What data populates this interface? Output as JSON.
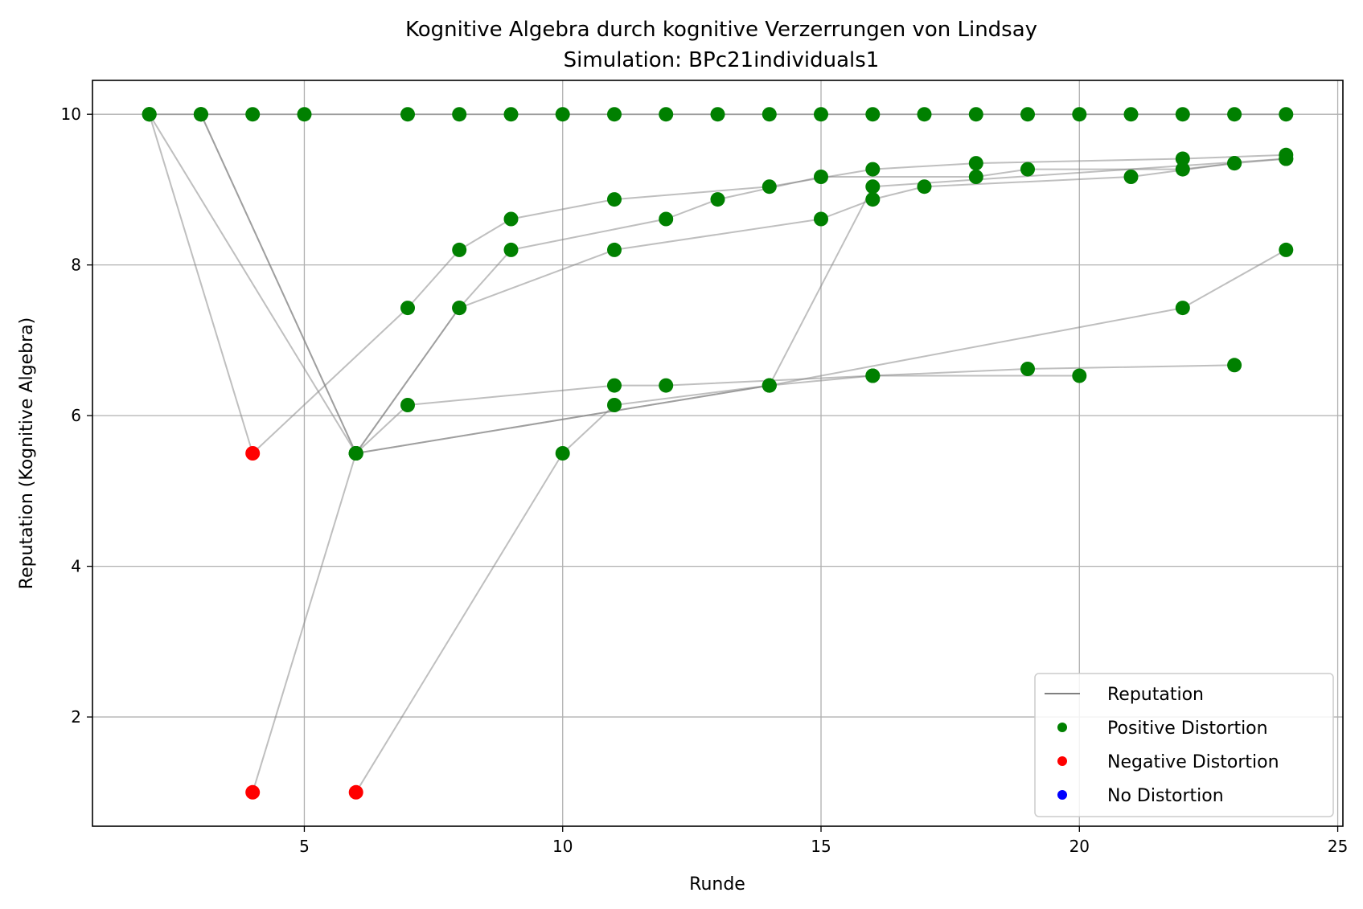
{
  "chart_data": {
    "type": "line",
    "title": "Kognitive Algebra durch kognitive Verzerrungen von Lindsay",
    "subtitle": "Simulation: BPc21individuals1",
    "xlabel": "Runde",
    "ylabel": "Reputation (Kognitive Algebra)",
    "xlim": [
      0.9,
      25.1
    ],
    "ylim": [
      0.55,
      10.45
    ],
    "xticks": [
      5,
      10,
      15,
      20,
      25
    ],
    "yticks": [
      2,
      4,
      6,
      8,
      10
    ],
    "grid": true,
    "legend_position": "lower-right",
    "colors": {
      "line": "#808080",
      "positive": "#008000",
      "negative": "#ff0000",
      "none": "#0000ff",
      "grid": "#b0b0b0"
    },
    "legend": [
      {
        "label": "Reputation",
        "kind": "line",
        "color": "#808080"
      },
      {
        "label": "Positive Distortion",
        "kind": "marker",
        "color": "#008000"
      },
      {
        "label": "Negative Distortion",
        "kind": "marker",
        "color": "#ff0000"
      },
      {
        "label": "No Distortion",
        "kind": "marker",
        "color": "#0000ff"
      }
    ],
    "series": [
      {
        "points": [
          [
            2,
            10
          ],
          [
            3,
            10
          ],
          [
            4,
            10
          ],
          [
            5,
            10
          ],
          [
            7,
            10
          ],
          [
            8,
            10
          ],
          [
            9,
            10
          ],
          [
            10,
            10
          ],
          [
            11,
            10
          ],
          [
            12,
            10
          ],
          [
            13,
            10
          ],
          [
            14,
            10
          ],
          [
            15,
            10
          ],
          [
            16,
            10
          ],
          [
            17,
            10
          ],
          [
            18,
            10
          ],
          [
            19,
            10
          ],
          [
            20,
            10
          ],
          [
            21,
            10
          ],
          [
            22,
            10
          ],
          [
            23,
            10
          ],
          [
            24,
            10
          ]
        ],
        "distortion": [
          "pos",
          "pos",
          "pos",
          "pos",
          "pos",
          "pos",
          "pos",
          "pos",
          "pos",
          "pos",
          "pos",
          "pos",
          "pos",
          "pos",
          "pos",
          "pos",
          "pos",
          "pos",
          "pos",
          "pos",
          "pos",
          "pos"
        ]
      },
      {
        "points": [
          [
            2,
            10
          ],
          [
            4,
            5.5
          ],
          [
            7,
            7.43
          ],
          [
            8,
            8.2
          ],
          [
            9,
            8.61
          ],
          [
            11,
            8.87
          ],
          [
            14,
            9.04
          ],
          [
            16,
            9.27
          ],
          [
            18,
            9.35
          ],
          [
            22,
            9.41
          ],
          [
            24,
            9.46
          ]
        ],
        "distortion": [
          "pos",
          "neg",
          "pos",
          "pos",
          "pos",
          "pos",
          "pos",
          "pos",
          "pos",
          "pos",
          "pos"
        ]
      },
      {
        "points": [
          [
            2,
            10
          ],
          [
            6,
            5.5
          ],
          [
            7,
            6.14
          ],
          [
            11,
            6.4
          ],
          [
            12,
            6.4
          ],
          [
            16,
            6.53
          ],
          [
            19,
            6.62
          ],
          [
            23,
            6.67
          ]
        ],
        "distortion": [
          "pos",
          "pos",
          "pos",
          "pos",
          "pos",
          "pos",
          "pos",
          "pos"
        ]
      },
      {
        "points": [
          [
            3,
            10
          ],
          [
            6,
            5.5
          ],
          [
            8,
            7.43
          ],
          [
            9,
            8.2
          ],
          [
            12,
            8.61
          ],
          [
            13,
            8.87
          ],
          [
            15,
            9.17
          ],
          [
            18,
            9.17
          ],
          [
            19,
            9.27
          ],
          [
            22,
            9.27
          ],
          [
            23,
            9.35
          ],
          [
            24,
            9.41
          ]
        ],
        "distortion": [
          "pos",
          "pos",
          "pos",
          "pos",
          "pos",
          "pos",
          "pos",
          "pos",
          "pos",
          "pos",
          "pos",
          "pos"
        ]
      },
      {
        "points": [
          [
            3,
            10
          ],
          [
            6,
            5.5
          ],
          [
            8,
            7.43
          ],
          [
            11,
            8.2
          ],
          [
            15,
            8.61
          ],
          [
            16,
            8.87
          ],
          [
            17,
            9.04
          ],
          [
            21,
            9.17
          ],
          [
            23,
            9.35
          ]
        ],
        "distortion": [
          "pos",
          "pos",
          "pos",
          "pos",
          "pos",
          "pos",
          "pos",
          "pos",
          "pos"
        ]
      },
      {
        "points": [
          [
            4,
            1
          ],
          [
            6,
            5.5
          ],
          [
            14,
            6.4
          ],
          [
            16,
            6.53
          ],
          [
            20,
            6.53
          ]
        ],
        "distortion": [
          "neg",
          "pos",
          "pos",
          "pos",
          "pos"
        ]
      },
      {
        "points": [
          [
            6,
            1
          ],
          [
            10,
            5.5
          ],
          [
            11,
            6.14
          ],
          [
            14,
            6.4
          ],
          [
            22,
            7.43
          ],
          [
            24,
            8.2
          ]
        ],
        "distortion": [
          "neg",
          "pos",
          "pos",
          "pos",
          "pos",
          "pos"
        ]
      },
      {
        "points": [
          [
            6,
            5.5
          ],
          [
            14,
            6.4
          ],
          [
            16,
            9.04
          ],
          [
            24,
            9.41
          ]
        ],
        "distortion": [
          "pos",
          "pos",
          "pos",
          "pos"
        ]
      }
    ]
  }
}
